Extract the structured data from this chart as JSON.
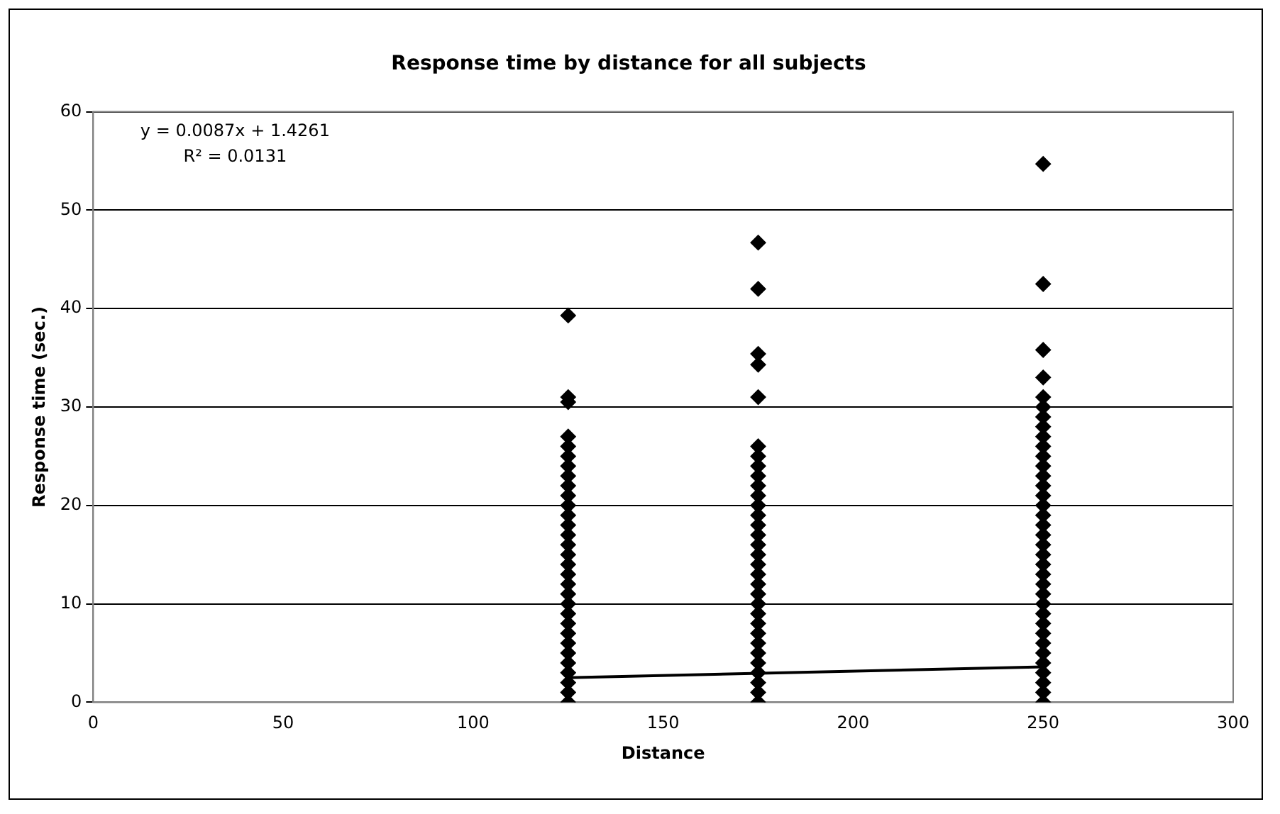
{
  "chart_data": {
    "type": "scatter",
    "title": "Response time by distance for all subjects",
    "xlabel": "Distance",
    "ylabel": "Response time (sec.)",
    "xlim": [
      0,
      300
    ],
    "xticks": [
      0,
      50,
      100,
      150,
      200,
      250,
      300
    ],
    "ylim": [
      0,
      60
    ],
    "yticks": [
      0,
      10,
      20,
      30,
      40,
      50,
      60
    ],
    "grid": "y",
    "legend": false,
    "marker": "diamond",
    "annotations": [
      "y = 0.0087x + 1.4261",
      "R² = 0.0131"
    ],
    "series": [
      {
        "type": "scatter",
        "color": "#000000",
        "x": [
          125,
          125,
          125,
          125,
          125,
          125,
          125,
          125,
          125,
          125,
          125,
          125,
          125,
          125,
          125,
          125,
          125,
          125,
          125,
          125,
          125,
          125,
          125,
          125,
          125,
          125,
          125,
          125,
          125,
          125,
          125,
          175,
          175,
          175,
          175,
          175,
          175,
          175,
          175,
          175,
          175,
          175,
          175,
          175,
          175,
          175,
          175,
          175,
          175,
          175,
          175,
          175,
          175,
          175,
          175,
          175,
          175,
          175,
          175,
          175,
          175,
          175,
          175,
          250,
          250,
          250,
          250,
          250,
          250,
          250,
          250,
          250,
          250,
          250,
          250,
          250,
          250,
          250,
          250,
          250,
          250,
          250,
          250,
          250,
          250,
          250,
          250,
          250,
          250,
          250,
          250,
          250,
          250,
          250,
          250,
          250,
          250,
          250,
          250
        ],
        "values": [
          0,
          1,
          2,
          3,
          4,
          5,
          6,
          7,
          8,
          9,
          10,
          11,
          12,
          13,
          14,
          15,
          16,
          17,
          18,
          19,
          20,
          21,
          22,
          23,
          24,
          25,
          26,
          27,
          30.5,
          31,
          39.3,
          0,
          1,
          2,
          3,
          4,
          5,
          6,
          7,
          8,
          9,
          10,
          11,
          12,
          13,
          14,
          15,
          16,
          17,
          18,
          19,
          20,
          21,
          22,
          23,
          24,
          25,
          26,
          31,
          34.3,
          35.4,
          42,
          46.7,
          0,
          1,
          2,
          3,
          4,
          5,
          6,
          7,
          8,
          9,
          10,
          11,
          12,
          13,
          14,
          15,
          16,
          17,
          18,
          19,
          20,
          21,
          22,
          23,
          24,
          25,
          26,
          27,
          28,
          29,
          30,
          31,
          33,
          35.8,
          42.5,
          54.7
        ]
      },
      {
        "type": "line",
        "color": "#000000",
        "x": [
          125,
          250
        ],
        "values": [
          2.5,
          3.6
        ],
        "marker": "none",
        "line_style": "solid"
      }
    ]
  }
}
